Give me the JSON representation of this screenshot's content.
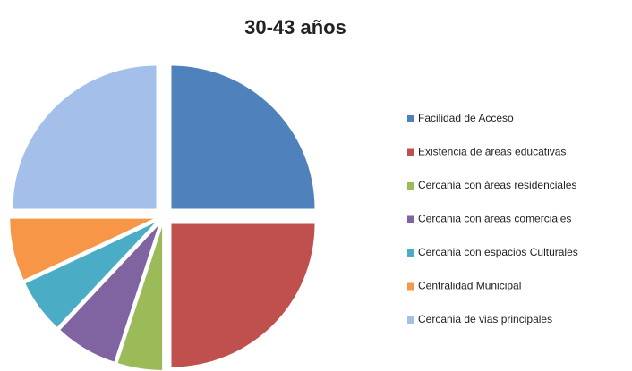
{
  "chart_data": {
    "type": "pie",
    "title": "30-43 años",
    "categories": [
      "Facilidad de Acceso",
      "Existencia de áreas educativas",
      "Cercania con áreas residenciales",
      "Cercania con áreas comerciales",
      "Cercania con espacios Culturales",
      "Centralidad Municipal",
      "Cercania de vias principales"
    ],
    "values": [
      25,
      25,
      5,
      7,
      6,
      7,
      25
    ],
    "colors": [
      "#4f81bd",
      "#c0504d",
      "#9bbb59",
      "#8064a2",
      "#4bacc6",
      "#f79646",
      "#a3bfea"
    ],
    "legend": "right"
  }
}
